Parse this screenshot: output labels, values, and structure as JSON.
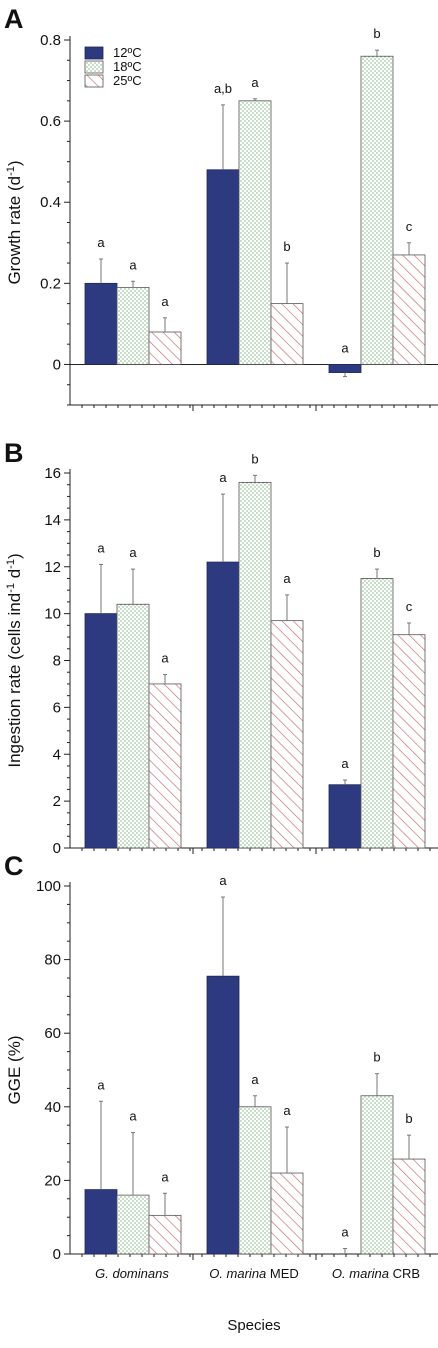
{
  "colors": {
    "s12": "#2e3a80",
    "dots18": "#3f8a3f",
    "hatch25": "#c76a6a"
  },
  "legend": [
    "12ºC",
    "18ºC",
    "25ºC"
  ],
  "categories": [
    "G. dominans",
    "O. marina MED",
    "O. marina CRB"
  ],
  "category_parts": [
    {
      "italic": "G. dominans",
      "plain": ""
    },
    {
      "italic": "O. marina",
      "plain": " MED"
    },
    {
      "italic": "O. marina",
      "plain": " CRB"
    }
  ],
  "xlabel": "Species",
  "chart_data": [
    {
      "type": "bar",
      "panel": "A",
      "ylabel": "Growth rate (d-1)",
      "ylim": [
        -0.1,
        0.8
      ],
      "yticks": [
        "0",
        "0.2",
        "0.4",
        "0.6",
        "0.8"
      ],
      "categories": [
        "G. dominans",
        "O. marina MED",
        "O. marina CRB"
      ],
      "series": [
        {
          "name": "12ºC",
          "values": [
            0.2,
            0.48,
            -0.02
          ],
          "errors": [
            0.06,
            0.16,
            0.01
          ],
          "letters": [
            "a",
            "a,b",
            "a"
          ]
        },
        {
          "name": "18ºC",
          "values": [
            0.19,
            0.65,
            0.76
          ],
          "errors": [
            0.015,
            0.005,
            0.015
          ],
          "letters": [
            "a",
            "a",
            "b"
          ]
        },
        {
          "name": "25ºC",
          "values": [
            0.08,
            0.15,
            0.27
          ],
          "errors": [
            0.035,
            0.1,
            0.03
          ],
          "letters": [
            "a",
            "b",
            "c"
          ]
        }
      ]
    },
    {
      "type": "bar",
      "panel": "B",
      "ylabel": "Ingestion rate (cells ind-1 d-1)",
      "ylim": [
        0,
        16
      ],
      "yticks": [
        "0",
        "2",
        "4",
        "6",
        "8",
        "10",
        "12",
        "14",
        "16"
      ],
      "categories": [
        "G. dominans",
        "O. marina MED",
        "O. marina CRB"
      ],
      "series": [
        {
          "name": "12ºC",
          "values": [
            10,
            12.2,
            2.7
          ],
          "errors": [
            2.1,
            2.9,
            0.2
          ],
          "letters": [
            "a",
            "a",
            "a"
          ]
        },
        {
          "name": "18ºC",
          "values": [
            10.4,
            15.6,
            11.5
          ],
          "errors": [
            1.5,
            0.3,
            0.4
          ],
          "letters": [
            "a",
            "b",
            "b"
          ]
        },
        {
          "name": "25ºC",
          "values": [
            7,
            9.7,
            9.1
          ],
          "errors": [
            0.4,
            1.1,
            0.5
          ],
          "letters": [
            "a",
            "a",
            "c"
          ]
        }
      ]
    },
    {
      "type": "bar",
      "panel": "C",
      "ylabel": "GGE (%)",
      "ylim": [
        0,
        100
      ],
      "yticks": [
        "0",
        "20",
        "40",
        "60",
        "80",
        "100"
      ],
      "categories": [
        "G. dominans",
        "O. marina MED",
        "O. marina CRB"
      ],
      "series": [
        {
          "name": "12ºC",
          "values": [
            17.5,
            75.5,
            0
          ],
          "errors": [
            24,
            21.5,
            1.5
          ],
          "letters": [
            "a",
            "a",
            "a"
          ]
        },
        {
          "name": "18ºC",
          "values": [
            16,
            40,
            43
          ],
          "errors": [
            17,
            3,
            6
          ],
          "letters": [
            "a",
            "a",
            "b"
          ]
        },
        {
          "name": "25ºC",
          "values": [
            10.5,
            22,
            25.8
          ],
          "errors": [
            6,
            12.5,
            6.5
          ],
          "letters": [
            "a",
            "a",
            "b"
          ]
        }
      ]
    }
  ]
}
